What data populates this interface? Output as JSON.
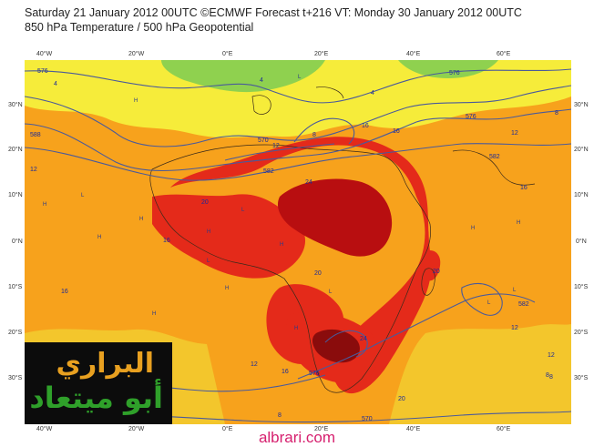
{
  "header": {
    "line1": "Saturday 21 January 2012 00UTC ©ECMWF Forecast t+216 VT: Monday 30 January 2012 00UTC",
    "line2": "850 hPa Temperature / 500 hPa Geopotential"
  },
  "axes": {
    "top": [
      "40°W",
      "20°W",
      "0°E",
      "20°E",
      "40°E",
      "60°E"
    ],
    "bottom": [
      "40°W",
      "20°W",
      "0°E",
      "20°E",
      "40°E",
      "60°E"
    ],
    "left": [
      "30°N",
      "20°N",
      "10°N",
      "0°N",
      "10°S",
      "20°S",
      "30°S"
    ],
    "right": [
      "30°N",
      "20°N",
      "10°N",
      "0°N",
      "10°S",
      "20°S",
      "30°S"
    ]
  },
  "contour_labels": [
    "4",
    "4",
    "4",
    "8",
    "8",
    "8",
    "12",
    "12",
    "12",
    "12",
    "12",
    "16",
    "16",
    "16",
    "16",
    "16",
    "16",
    "20",
    "20",
    "20",
    "20",
    "24",
    "24",
    "8",
    "12",
    "8"
  ],
  "geopotential_labels": [
    "576",
    "576",
    "570",
    "576",
    "582",
    "588",
    "582",
    "582",
    "576",
    "570"
  ],
  "pressure_labels": [
    "H",
    "L",
    "H",
    "H",
    "L",
    "H",
    "L",
    "H",
    "H",
    "L",
    "H",
    "L",
    "H",
    "H",
    "L",
    "H",
    "L",
    "H",
    "H"
  ],
  "logo": {
    "line1": "البراري",
    "line2": "أبو ميتعاد"
  },
  "site": "albrari.com",
  "colors": {
    "yellow": "#f6ec3a",
    "orange": "#f7a21c",
    "red": "#e42a1a",
    "darkred": "#b80e10",
    "green": "#8fd14f",
    "contour": "#4a5a9a"
  }
}
